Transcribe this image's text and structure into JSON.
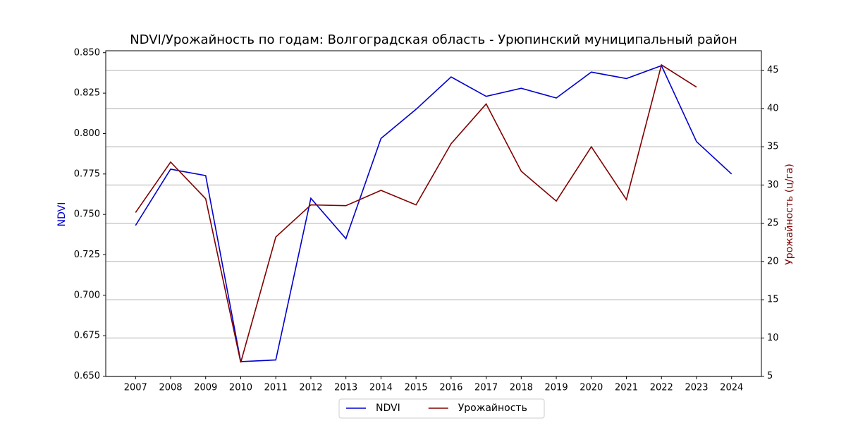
{
  "chart_data": {
    "type": "line",
    "title": "NDVI/Урожайность по годам: Волгоградская область - Урюпинский муниципальный район",
    "ylabel": "NDVI",
    "y2label": "Урожайность (ц/га)",
    "x": [
      2007,
      2008,
      2009,
      2010,
      2011,
      2012,
      2013,
      2014,
      2015,
      2016,
      2017,
      2018,
      2019,
      2020,
      2021,
      2022,
      2023,
      2024
    ],
    "xlim": [
      2006.15,
      2024.85
    ],
    "xticks": [
      2007,
      2008,
      2009,
      2010,
      2011,
      2012,
      2013,
      2014,
      2015,
      2016,
      2017,
      2018,
      2019,
      2020,
      2021,
      2022,
      2023,
      2024
    ],
    "ylim": [
      0.6498,
      0.8512
    ],
    "yticks": [
      {
        "value": 0.65,
        "label": "0.650"
      },
      {
        "value": 0.675,
        "label": "0.675"
      },
      {
        "value": 0.7,
        "label": "0.700"
      },
      {
        "value": 0.725,
        "label": "0.725"
      },
      {
        "value": 0.75,
        "label": "0.750"
      },
      {
        "value": 0.775,
        "label": "0.775"
      },
      {
        "value": 0.8,
        "label": "0.800"
      },
      {
        "value": 0.825,
        "label": "0.825"
      },
      {
        "value": 0.85,
        "label": "0.850"
      }
    ],
    "y2lim": [
      4.97,
      47.55
    ],
    "y2ticks": [
      5,
      10,
      15,
      20,
      25,
      30,
      35,
      40,
      45
    ],
    "grid": "y2",
    "legend": "bottom",
    "series": [
      {
        "name": "NDVI",
        "color": "#0000cd",
        "values": [
          0.7432,
          0.778,
          0.774,
          0.659,
          0.66,
          0.76,
          0.735,
          0.797,
          0.815,
          0.835,
          0.823,
          0.828,
          0.822,
          0.838,
          0.834,
          0.842,
          0.795,
          0.775
        ]
      },
      {
        "name": "Урожайность",
        "color": "#800000",
        "axis": "y2",
        "values": [
          26.4,
          33.0,
          28.2,
          6.8,
          23.2,
          27.4,
          27.3,
          29.3,
          27.4,
          35.4,
          40.6,
          31.8,
          27.9,
          35.0,
          28.1,
          45.7,
          42.8,
          null
        ]
      }
    ]
  }
}
